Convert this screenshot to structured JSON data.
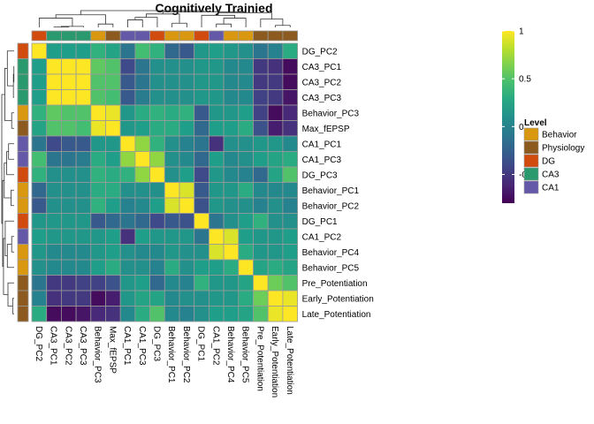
{
  "chart_data": {
    "type": "heatmap",
    "title": "Cognitively Trainied",
    "variables": [
      "DG_PC2",
      "CA3_PC1",
      "CA3_PC2",
      "CA3_PC3",
      "Behavior_PC3",
      "Max_fEPSP",
      "CA1_PC1",
      "CA1_PC3",
      "DG_PC3",
      "Behavior_PC1",
      "Behavior_PC2",
      "DG_PC1",
      "CA1_PC2",
      "Behavior_PC4",
      "Behavior_PC5",
      "Pre_Potentiation",
      "Early_Potentiation",
      "Late_Potentiation"
    ],
    "levels": [
      "DG",
      "CA3",
      "CA3",
      "CA3",
      "Behavior",
      "Physiology",
      "CA1",
      "CA1",
      "DG",
      "Behavior",
      "Behavior",
      "DG",
      "CA1",
      "Behavior",
      "Behavior",
      "Physiology",
      "Physiology",
      "Physiology"
    ],
    "level_legend": {
      "title": "Level",
      "items": [
        {
          "name": "Behavior",
          "color": "#d9980f"
        },
        {
          "name": "Physiology",
          "color": "#8c5a1e"
        },
        {
          "name": "DG",
          "color": "#d14b0f"
        },
        {
          "name": "CA3",
          "color": "#2a9a6e"
        },
        {
          "name": "CA1",
          "color": "#6459a8"
        }
      ]
    },
    "colorbar": {
      "ticks": [
        {
          "value": 1,
          "label": "1"
        },
        {
          "value": 0.5,
          "label": "0.5"
        },
        {
          "value": 0,
          "label": "0"
        },
        {
          "value": -0.5,
          "label": "-0.5"
        }
      ],
      "range": [
        -0.8,
        1
      ],
      "palette": "viridis"
    },
    "values": [
      [
        1,
        0.2,
        0.2,
        0.2,
        0.35,
        0.25,
        -0.1,
        0.45,
        0.35,
        -0.2,
        -0.3,
        0.15,
        0.2,
        0.15,
        0.1,
        -0.1,
        0,
        0.3
      ],
      [
        0.2,
        1,
        1,
        1,
        0.55,
        0.5,
        -0.4,
        -0.1,
        0.1,
        0.1,
        0.1,
        0.15,
        0.15,
        0.05,
        0.05,
        -0.5,
        -0.55,
        -0.75
      ],
      [
        0.2,
        1,
        1,
        1,
        0.5,
        0.5,
        -0.3,
        -0.1,
        0.1,
        0.1,
        0.1,
        0.15,
        0.15,
        0.05,
        0.05,
        -0.5,
        -0.5,
        -0.75
      ],
      [
        0.2,
        1,
        1,
        1,
        0.5,
        0.45,
        -0.3,
        -0.05,
        0.1,
        0.1,
        0.1,
        0.15,
        0.15,
        0.05,
        0.05,
        -0.45,
        -0.5,
        -0.7
      ],
      [
        0.35,
        0.55,
        0.5,
        0.5,
        1,
        0.95,
        0.15,
        0.3,
        0.35,
        0.3,
        0.35,
        -0.3,
        0.15,
        0.15,
        0.2,
        -0.45,
        -0.75,
        -0.6
      ],
      [
        0.25,
        0.5,
        0.5,
        0.45,
        0.95,
        1,
        0.15,
        0.2,
        0.3,
        0.3,
        0.2,
        -0.2,
        0.2,
        0.2,
        0.3,
        -0.35,
        -0.65,
        -0.55
      ],
      [
        -0.1,
        -0.4,
        -0.3,
        -0.3,
        0.15,
        0.15,
        1,
        0.7,
        0.35,
        0.1,
        0,
        -0.1,
        -0.55,
        0.1,
        0.1,
        0.15,
        0.15,
        0.05
      ],
      [
        0.45,
        -0.1,
        -0.1,
        -0.05,
        0.3,
        0.2,
        0.7,
        1,
        0.7,
        0.1,
        0.05,
        -0.2,
        0.2,
        0.05,
        0.1,
        0.2,
        0.25,
        0.3
      ],
      [
        0.35,
        0.1,
        0.1,
        0.1,
        0.35,
        0.3,
        0.35,
        0.7,
        1,
        0.1,
        0.2,
        -0.4,
        0.15,
        0.05,
        0,
        -0.2,
        0.25,
        0.5
      ],
      [
        -0.2,
        0.1,
        0.1,
        0.1,
        0.3,
        0.3,
        0.1,
        0.1,
        0.1,
        1,
        0.9,
        -0.3,
        0.15,
        0.15,
        0.3,
        0.05,
        0.05,
        0.05
      ],
      [
        -0.3,
        0.1,
        0.1,
        0.1,
        0.35,
        0.2,
        0,
        0.05,
        0.2,
        0.9,
        1,
        -0.35,
        0.15,
        0.1,
        0.1,
        0,
        0.1,
        0
      ],
      [
        0.15,
        0.15,
        0.15,
        0.15,
        -0.3,
        -0.2,
        -0.1,
        -0.2,
        -0.4,
        -0.3,
        -0.35,
        1,
        -0.1,
        0.1,
        0.2,
        0.35,
        0.1,
        0.1
      ],
      [
        0.2,
        0.15,
        0.15,
        0.15,
        0.15,
        0.2,
        -0.55,
        0.2,
        0.15,
        0.15,
        0.15,
        -0.1,
        1,
        0.9,
        0.2,
        0.15,
        0.15,
        0.2
      ],
      [
        0.15,
        0.05,
        0.05,
        0.05,
        0.15,
        0.2,
        0.1,
        0.05,
        0.05,
        0.15,
        0.1,
        0.1,
        0.9,
        1,
        0.3,
        0.15,
        0.15,
        0.2
      ],
      [
        0.1,
        0.05,
        0.05,
        0.05,
        0.2,
        0.3,
        0.1,
        0.1,
        0,
        0.3,
        0.1,
        0.2,
        0.2,
        0.3,
        1,
        0.25,
        0.3,
        0.25
      ],
      [
        -0.1,
        -0.5,
        -0.5,
        -0.45,
        -0.45,
        -0.35,
        0.15,
        0.2,
        -0.2,
        0.05,
        0,
        0.35,
        0.15,
        0.15,
        0.25,
        1,
        0.6,
        0.5
      ],
      [
        0,
        -0.55,
        -0.5,
        -0.5,
        -0.75,
        -0.65,
        0.15,
        0.25,
        0.25,
        0.05,
        0.1,
        0.1,
        0.15,
        0.15,
        0.3,
        0.6,
        1,
        0.95
      ],
      [
        0.3,
        -0.75,
        -0.75,
        -0.7,
        -0.6,
        -0.55,
        0.05,
        0.3,
        0.5,
        0.05,
        0,
        0.1,
        0.2,
        0.2,
        0.25,
        0.5,
        0.95,
        1
      ]
    ]
  }
}
